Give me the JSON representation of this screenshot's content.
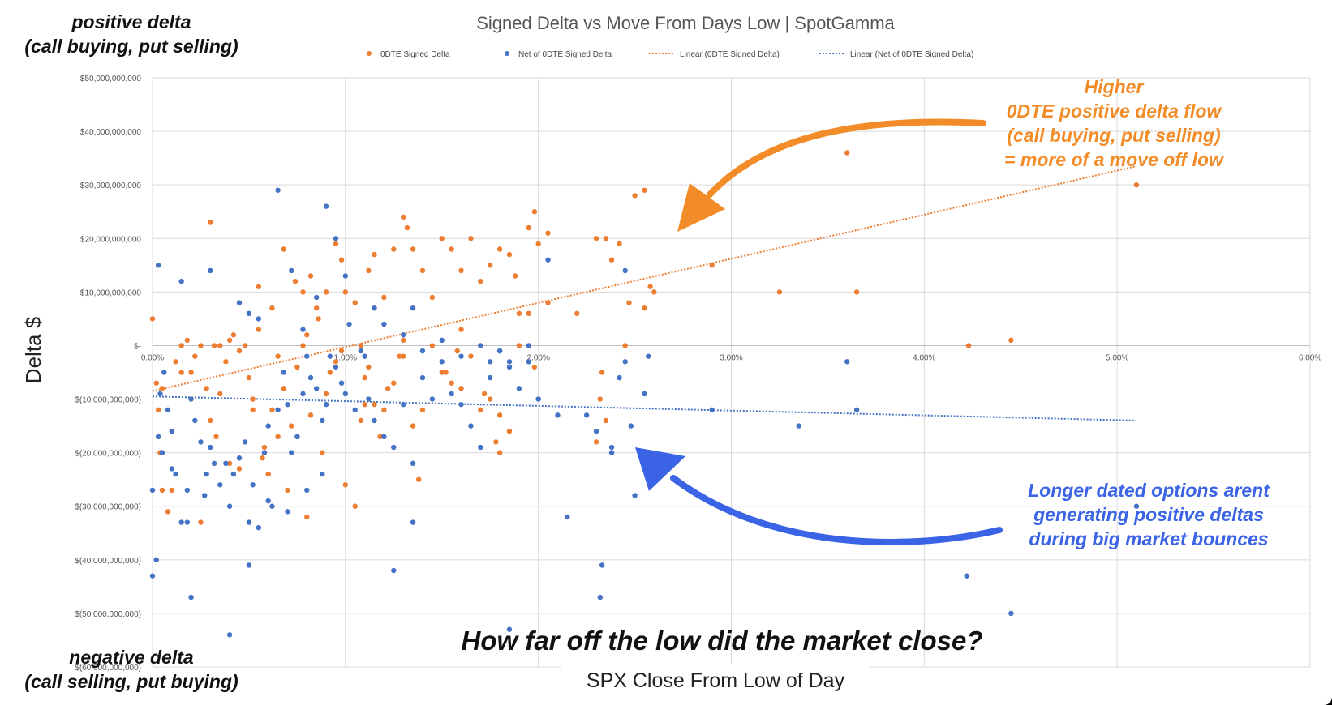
{
  "page": {
    "positive_note_line1": "positive delta",
    "positive_note_line2": "(call buying, put selling)",
    "negative_note_line1": "negative delta",
    "negative_note_line2": "(call selling, put buying)",
    "callout_orange": [
      "Higher",
      "0DTE positive delta flow",
      "(call buying, put selling)",
      "= more of a move off low"
    ],
    "callout_blue": [
      "Longer dated options arent",
      "generating positive deltas",
      "during big market bounces"
    ],
    "bottom_question": "How far off the low did the market close?"
  },
  "colors": {
    "orange": "#ed7d31",
    "blue": "#4472c4",
    "callout_orange": "#f28c28",
    "callout_blue": "#3a63e6",
    "grid": "#d9d9d9"
  },
  "chart_data": {
    "type": "scatter",
    "title": "Signed Delta vs Move From Days Low | SpotGamma",
    "xlabel": "SPX Close From Low of Day",
    "ylabel": "Delta $",
    "xlim": [
      0,
      6
    ],
    "ylim": [
      -60000000000,
      50000000000
    ],
    "x_unit": "%",
    "x_ticks": [
      "0.00%",
      "1.00%",
      "2.00%",
      "3.00%",
      "4.00%",
      "5.00%",
      "6.00%"
    ],
    "y_ticks": [
      "$50,000,000,000",
      "$40,000,000,000",
      "$30,000,000,000",
      "$20,000,000,000",
      "$10,000,000,000",
      "$-",
      "$(10,000,000,000)",
      "$(20,000,000,000)",
      "$(30,000,000,000)",
      "$(40,000,000,000)",
      "$(50,000,000,000)",
      "$(60,000,000,000)"
    ],
    "grid": true,
    "legend_position": "top",
    "legend": [
      "0DTE Signed Delta",
      "Net of 0DTE Signed Delta",
      "Linear (0DTE Signed Delta)",
      "Linear (Net of 0DTE Signed Delta)"
    ],
    "series": [
      {
        "name": "0DTE Signed Delta",
        "color": "#ed7d31",
        "points": [
          [
            0.0,
            5
          ],
          [
            0.02,
            -7
          ],
          [
            0.05,
            -8
          ],
          [
            0.03,
            -12
          ],
          [
            0.04,
            -20
          ],
          [
            0.05,
            -27
          ],
          [
            0.08,
            -31
          ],
          [
            0.1,
            -27
          ],
          [
            0.12,
            -3
          ],
          [
            0.15,
            0
          ],
          [
            0.18,
            1
          ],
          [
            0.2,
            -5
          ],
          [
            0.22,
            -2
          ],
          [
            0.25,
            0
          ],
          [
            0.28,
            -8
          ],
          [
            0.3,
            -14
          ],
          [
            0.32,
            0
          ],
          [
            0.35,
            0
          ],
          [
            0.38,
            -3
          ],
          [
            0.4,
            1
          ],
          [
            0.42,
            2
          ],
          [
            0.45,
            -1
          ],
          [
            0.48,
            0
          ],
          [
            0.5,
            -6
          ],
          [
            0.52,
            -10
          ],
          [
            0.55,
            3
          ],
          [
            0.58,
            -19
          ],
          [
            0.6,
            -24
          ],
          [
            0.62,
            -12
          ],
          [
            0.65,
            -2
          ],
          [
            0.68,
            -8
          ],
          [
            0.7,
            -27
          ],
          [
            0.72,
            -15
          ],
          [
            0.75,
            -4
          ],
          [
            0.78,
            0
          ],
          [
            0.8,
            2
          ],
          [
            0.82,
            -13
          ],
          [
            0.85,
            7
          ],
          [
            0.88,
            -20
          ],
          [
            0.9,
            -9
          ],
          [
            0.92,
            -5
          ],
          [
            0.95,
            -3
          ],
          [
            0.98,
            -1
          ],
          [
            1.0,
            -26
          ],
          [
            1.05,
            -30
          ],
          [
            1.08,
            -14
          ],
          [
            1.1,
            -6
          ],
          [
            1.12,
            -4
          ],
          [
            1.15,
            -11
          ],
          [
            1.18,
            -17
          ],
          [
            1.2,
            -12
          ],
          [
            1.22,
            -8
          ],
          [
            1.25,
            -7
          ],
          [
            1.28,
            -2
          ],
          [
            1.3,
            1
          ],
          [
            1.35,
            -15
          ],
          [
            1.38,
            -25
          ],
          [
            1.4,
            -12
          ],
          [
            1.45,
            0
          ],
          [
            1.5,
            -5
          ],
          [
            1.52,
            -5
          ],
          [
            1.55,
            -7
          ],
          [
            1.58,
            -1
          ],
          [
            1.6,
            3
          ],
          [
            1.65,
            -2
          ],
          [
            1.7,
            -12
          ],
          [
            1.72,
            -9
          ],
          [
            1.75,
            -10
          ],
          [
            1.8,
            -13
          ],
          [
            1.85,
            -16
          ],
          [
            1.9,
            0
          ],
          [
            1.95,
            6
          ],
          [
            1.98,
            -4
          ],
          [
            2.05,
            8
          ],
          [
            0.3,
            23
          ],
          [
            0.55,
            11
          ],
          [
            0.62,
            7
          ],
          [
            0.68,
            18
          ],
          [
            0.74,
            12
          ],
          [
            0.78,
            10
          ],
          [
            0.82,
            13
          ],
          [
            0.86,
            5
          ],
          [
            0.9,
            10
          ],
          [
            0.95,
            19
          ],
          [
            0.98,
            16
          ],
          [
            1.0,
            10
          ],
          [
            1.05,
            8
          ],
          [
            1.08,
            0
          ],
          [
            1.12,
            14
          ],
          [
            1.15,
            17
          ],
          [
            1.2,
            9
          ],
          [
            1.25,
            18
          ],
          [
            1.3,
            24
          ],
          [
            1.32,
            22
          ],
          [
            1.35,
            18
          ],
          [
            1.4,
            14
          ],
          [
            1.45,
            9
          ],
          [
            1.5,
            20
          ],
          [
            1.55,
            18
          ],
          [
            1.6,
            14
          ],
          [
            1.65,
            20
          ],
          [
            1.7,
            12
          ],
          [
            1.75,
            15
          ],
          [
            1.8,
            18
          ],
          [
            1.85,
            17
          ],
          [
            1.88,
            13
          ],
          [
            1.9,
            6
          ],
          [
            1.95,
            22
          ],
          [
            1.98,
            25
          ],
          [
            2.0,
            19
          ],
          [
            2.05,
            21
          ],
          [
            2.2,
            6
          ],
          [
            2.3,
            20
          ],
          [
            2.35,
            20
          ],
          [
            2.38,
            16
          ],
          [
            2.42,
            19
          ],
          [
            2.45,
            0
          ],
          [
            2.47,
            8
          ],
          [
            2.5,
            28
          ],
          [
            2.55,
            29
          ],
          [
            2.58,
            11
          ],
          [
            2.33,
            -5
          ],
          [
            2.32,
            -10
          ],
          [
            2.55,
            7
          ],
          [
            2.6,
            10
          ],
          [
            2.9,
            15
          ],
          [
            3.25,
            10
          ],
          [
            3.6,
            36
          ],
          [
            3.65,
            10
          ],
          [
            4.23,
            0
          ],
          [
            4.45,
            1
          ],
          [
            5.1,
            30
          ],
          [
            2.35,
            -14
          ],
          [
            1.78,
            -18
          ],
          [
            1.8,
            -20
          ],
          [
            0.52,
            -12
          ],
          [
            0.57,
            -21
          ],
          [
            0.15,
            -5
          ],
          [
            0.2,
            -10
          ],
          [
            0.33,
            -17
          ],
          [
            0.4,
            -22
          ],
          [
            0.45,
            -23
          ],
          [
            0.25,
            -33
          ],
          [
            0.8,
            -32
          ],
          [
            0.05,
            -20
          ],
          [
            0.1,
            -16
          ],
          [
            0.35,
            -9
          ],
          [
            0.65,
            -17
          ],
          [
            1.1,
            -11
          ],
          [
            1.3,
            -2
          ],
          [
            1.6,
            -8
          ],
          [
            2.3,
            -18
          ]
        ]
      },
      {
        "name": "Net of 0DTE Signed Delta",
        "color": "#4472c4",
        "points": [
          [
            0.0,
            -43
          ],
          [
            0.02,
            -40
          ],
          [
            0.0,
            -27
          ],
          [
            0.03,
            -17
          ],
          [
            0.05,
            -20
          ],
          [
            0.04,
            -9
          ],
          [
            0.06,
            -5
          ],
          [
            0.08,
            -12
          ],
          [
            0.1,
            -16
          ],
          [
            0.12,
            -24
          ],
          [
            0.15,
            -33
          ],
          [
            0.18,
            -33
          ],
          [
            0.2,
            -10
          ],
          [
            0.22,
            -14
          ],
          [
            0.25,
            -18
          ],
          [
            0.28,
            -24
          ],
          [
            0.3,
            -19
          ],
          [
            0.32,
            -22
          ],
          [
            0.35,
            -26
          ],
          [
            0.38,
            -22
          ],
          [
            0.4,
            -30
          ],
          [
            0.42,
            -24
          ],
          [
            0.45,
            -21
          ],
          [
            0.48,
            -18
          ],
          [
            0.5,
            -33
          ],
          [
            0.52,
            -26
          ],
          [
            0.55,
            -34
          ],
          [
            0.58,
            -20
          ],
          [
            0.6,
            -15
          ],
          [
            0.62,
            -30
          ],
          [
            0.65,
            -12
          ],
          [
            0.68,
            -5
          ],
          [
            0.7,
            -11
          ],
          [
            0.72,
            -20
          ],
          [
            0.75,
            -17
          ],
          [
            0.78,
            -9
          ],
          [
            0.8,
            -2
          ],
          [
            0.82,
            -6
          ],
          [
            0.85,
            -8
          ],
          [
            0.88,
            -14
          ],
          [
            0.9,
            -11
          ],
          [
            0.92,
            -2
          ],
          [
            0.95,
            -4
          ],
          [
            0.98,
            -7
          ],
          [
            1.0,
            -9
          ],
          [
            1.05,
            -12
          ],
          [
            1.1,
            -2
          ],
          [
            1.12,
            -10
          ],
          [
            1.15,
            -14
          ],
          [
            1.2,
            -17
          ],
          [
            1.25,
            -19
          ],
          [
            1.3,
            -11
          ],
          [
            1.35,
            -22
          ],
          [
            1.4,
            -6
          ],
          [
            1.45,
            -10
          ],
          [
            1.5,
            -3
          ],
          [
            1.55,
            -9
          ],
          [
            1.6,
            -11
          ],
          [
            1.65,
            -15
          ],
          [
            1.7,
            -19
          ],
          [
            1.75,
            -6
          ],
          [
            1.8,
            -1
          ],
          [
            1.85,
            -4
          ],
          [
            1.9,
            -8
          ],
          [
            1.95,
            -3
          ],
          [
            2.0,
            -10
          ],
          [
            0.03,
            15
          ],
          [
            0.15,
            12
          ],
          [
            0.3,
            14
          ],
          [
            0.45,
            8
          ],
          [
            0.5,
            6
          ],
          [
            0.55,
            5
          ],
          [
            0.65,
            29
          ],
          [
            0.72,
            14
          ],
          [
            0.78,
            3
          ],
          [
            0.85,
            9
          ],
          [
            0.9,
            26
          ],
          [
            0.95,
            20
          ],
          [
            1.0,
            13
          ],
          [
            1.02,
            4
          ],
          [
            1.08,
            -1
          ],
          [
            1.15,
            7
          ],
          [
            1.2,
            4
          ],
          [
            1.3,
            2
          ],
          [
            1.35,
            7
          ],
          [
            1.4,
            -1
          ],
          [
            1.5,
            1
          ],
          [
            1.6,
            -2
          ],
          [
            1.7,
            0
          ],
          [
            1.75,
            -3
          ],
          [
            1.8,
            -1
          ],
          [
            1.85,
            -3
          ],
          [
            1.95,
            0
          ],
          [
            2.0,
            -10
          ],
          [
            2.05,
            16
          ],
          [
            2.1,
            -13
          ],
          [
            2.15,
            -32
          ],
          [
            2.25,
            -13
          ],
          [
            2.3,
            -16
          ],
          [
            2.32,
            -47
          ],
          [
            2.33,
            -41
          ],
          [
            2.38,
            -20
          ],
          [
            2.42,
            -6
          ],
          [
            2.45,
            14
          ],
          [
            2.48,
            -15
          ],
          [
            2.5,
            -28
          ],
          [
            2.55,
            -9
          ],
          [
            2.57,
            -2
          ],
          [
            2.9,
            -12
          ],
          [
            3.35,
            -15
          ],
          [
            3.6,
            -3
          ],
          [
            3.65,
            -12
          ],
          [
            4.22,
            -43
          ],
          [
            4.45,
            -50
          ],
          [
            5.1,
            -30
          ],
          [
            0.2,
            -47
          ],
          [
            0.4,
            -54
          ],
          [
            0.5,
            -41
          ],
          [
            1.25,
            -42
          ],
          [
            1.35,
            -33
          ],
          [
            1.85,
            -53
          ],
          [
            2.38,
            -19
          ],
          [
            2.45,
            -3
          ],
          [
            0.1,
            -23
          ],
          [
            0.18,
            -27
          ],
          [
            0.27,
            -28
          ],
          [
            0.6,
            -29
          ],
          [
            0.7,
            -31
          ],
          [
            0.8,
            -27
          ],
          [
            0.88,
            -24
          ]
        ]
      }
    ],
    "trendlines": [
      {
        "name": "Linear (0DTE Signed Delta)",
        "color": "#ed7d31",
        "from": [
          0.0,
          -8.5
        ],
        "to": [
          5.1,
          33.5
        ]
      },
      {
        "name": "Linear (Net of 0DTE Signed Delta)",
        "color": "#4472c4",
        "from": [
          0.0,
          -9.5
        ],
        "to": [
          5.1,
          -14
        ]
      }
    ]
  }
}
